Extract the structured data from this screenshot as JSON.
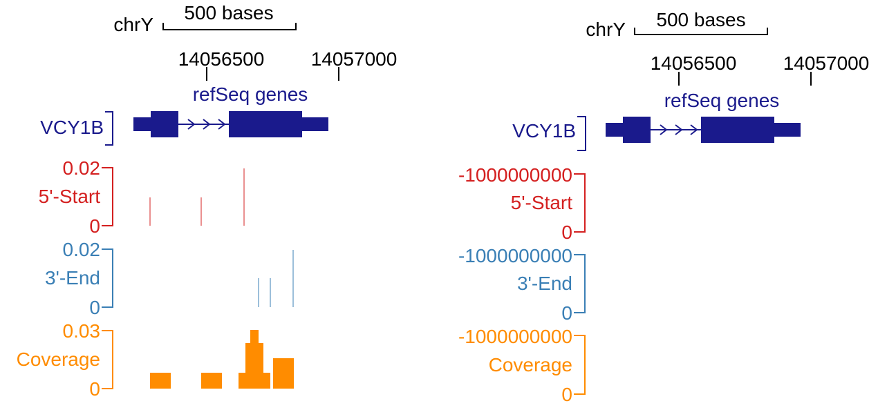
{
  "left": {
    "chrom": "chrY",
    "scale_label": "500 bases",
    "positions": [
      "14056500",
      "14057000"
    ],
    "track_title": "refSeq genes",
    "gene_name": "VCY1B",
    "tracks": [
      {
        "name": "5'-Start",
        "max": "0.02",
        "min": "0",
        "color": "#d42020"
      },
      {
        "name": "3'-End",
        "max": "0.02",
        "min": "0",
        "color": "#3a7fb5"
      },
      {
        "name": "Coverage",
        "max": "0.03",
        "min": "0",
        "color": "#ff8c00"
      }
    ]
  },
  "right": {
    "chrom": "chrY",
    "scale_label": "500 bases",
    "positions": [
      "14056500",
      "14057000"
    ],
    "track_title": "refSeq genes",
    "gene_name": "VCY1B",
    "tracks": [
      {
        "name": "5'-Start",
        "max": "-1000000000",
        "min": "0",
        "color": "#d42020"
      },
      {
        "name": "3'-End",
        "max": "-1000000000",
        "min": "0",
        "color": "#3a7fb5"
      },
      {
        "name": "Coverage",
        "max": "-1000000000",
        "min": "0",
        "color": "#ff8c00"
      }
    ]
  },
  "colors": {
    "gene": "#1a1a8c",
    "start": "#d42020",
    "end": "#3a7fb5",
    "coverage": "#ff8c00"
  }
}
